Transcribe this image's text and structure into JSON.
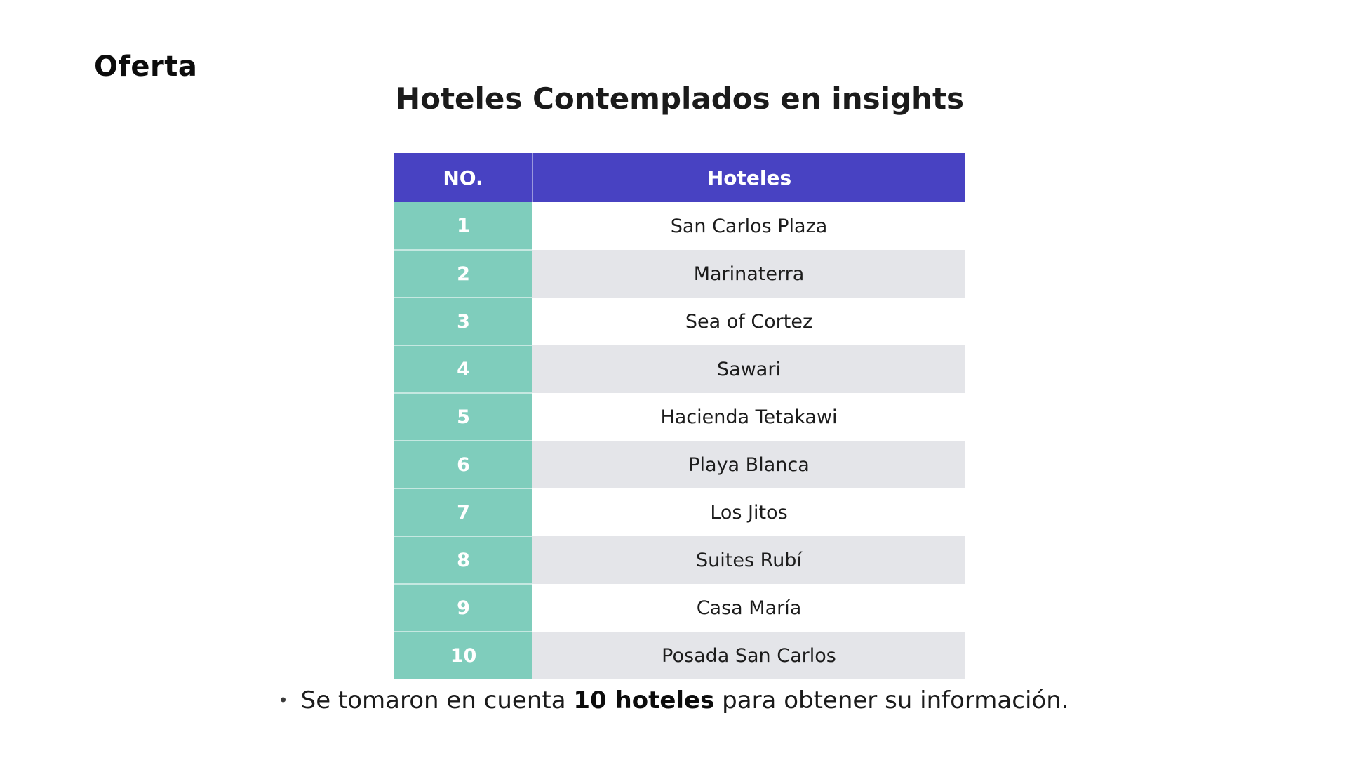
{
  "page": {
    "section_label": "Oferta",
    "title": "Hoteles Contemplados en insights"
  },
  "table": {
    "columns": [
      "NO.",
      "Hoteles"
    ],
    "rows": [
      {
        "no": "1",
        "hotel": "San Carlos Plaza"
      },
      {
        "no": "2",
        "hotel": "Marinaterra"
      },
      {
        "no": "3",
        "hotel": "Sea of Cortez"
      },
      {
        "no": "4",
        "hotel": "Sawari"
      },
      {
        "no": "5",
        "hotel": "Hacienda Tetakawi"
      },
      {
        "no": "6",
        "hotel": "Playa Blanca"
      },
      {
        "no": "7",
        "hotel": "Los Jitos"
      },
      {
        "no": "8",
        "hotel": "Suites Rubí"
      },
      {
        "no": "9",
        "hotel": "Casa María"
      },
      {
        "no": "10",
        "hotel": "Posada San Carlos"
      }
    ]
  },
  "footer": {
    "bullet": "•",
    "text_before": "Se tomaron en cuenta ",
    "text_bold": "10 hoteles",
    "text_after": " para obtener su información."
  },
  "colors": {
    "header_bg": "#4842c2",
    "number_column_bg": "#7fcdbc",
    "row_alt_bg": "#e4e5e9",
    "row_bg": "#ffffff",
    "header_text": "#ffffff",
    "body_text": "#1c1c1c"
  }
}
